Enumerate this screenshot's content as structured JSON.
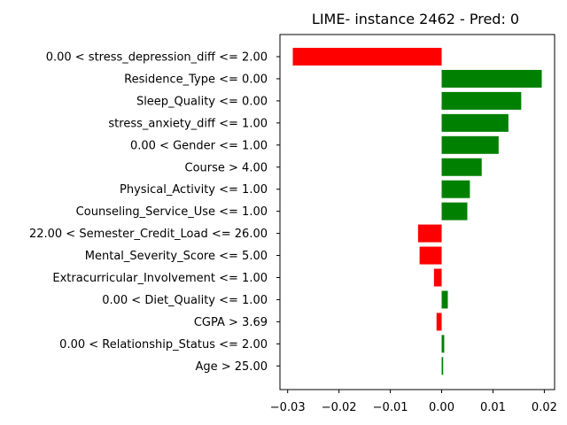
{
  "chart_data": {
    "type": "bar",
    "orientation": "horizontal",
    "title": "LIME- instance 2462 - Pred: 0",
    "xlabel": "",
    "ylabel": "",
    "xlim": [
      -0.0315,
      0.022
    ],
    "xticks": [
      -0.03,
      -0.02,
      -0.01,
      0.0,
      0.01,
      0.02
    ],
    "xtick_labels": [
      "−0.03",
      "−0.02",
      "−0.01",
      "0.00",
      "0.01",
      "0.02"
    ],
    "grid": false,
    "categories": [
      "0.00 < stress_depression_diff <= 2.00",
      "Residence_Type <= 0.00",
      "Sleep_Quality <= 0.00",
      "stress_anxiety_diff <= 1.00",
      "0.00 < Gender <= 1.00",
      "Course > 4.00",
      "Physical_Activity <= 1.00",
      "Counseling_Service_Use <= 1.00",
      "22.00 < Semester_Credit_Load <= 26.00",
      "Mental_Severity_Score <= 5.00",
      "Extracurricular_Involvement <= 1.00",
      "0.00 < Diet_Quality <= 1.00",
      "CGPA > 3.69",
      "0.00 < Relationship_Status <= 2.00",
      "Age > 25.00"
    ],
    "values": [
      -0.029,
      0.0195,
      0.0155,
      0.013,
      0.0111,
      0.0078,
      0.0055,
      0.005,
      -0.0046,
      -0.0043,
      -0.0015,
      0.0012,
      -0.001,
      0.0005,
      0.0003
    ],
    "colors": {
      "positive": "#008000",
      "negative": "#ff0000"
    }
  }
}
